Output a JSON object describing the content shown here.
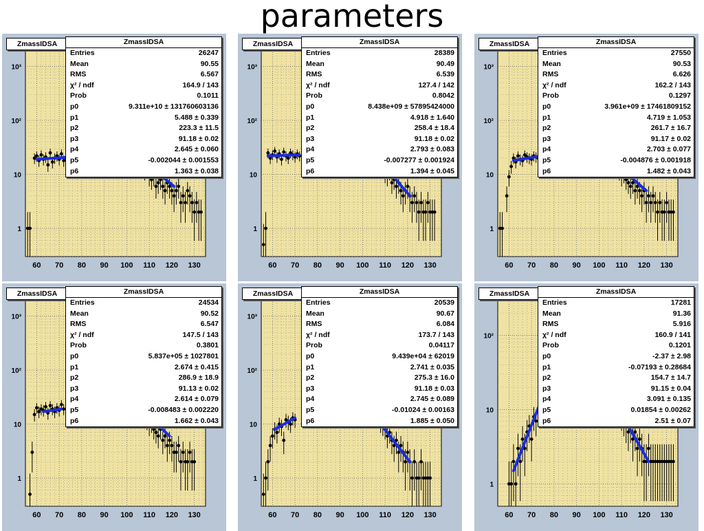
{
  "slide_title": "parameters",
  "chart_data": [
    {
      "type": "scatter",
      "histogram_name": "ZmassIDSA",
      "stats": [
        [
          "Entries",
          "26247"
        ],
        [
          "Mean",
          "90.55"
        ],
        [
          "RMS",
          "6.567"
        ],
        [
          "χ² / ndf",
          "164.9 / 143"
        ],
        [
          "Prob",
          "0.1011"
        ],
        [
          "p0",
          "9.311e+10 ± 131760603136"
        ],
        [
          "p1",
          "5.488 ± 0.339"
        ],
        [
          "p2",
          "223.3 ± 11.5"
        ],
        [
          "p3",
          "91.18 ± 0.02"
        ],
        [
          "p4",
          "2.645 ± 0.060"
        ],
        [
          "p5",
          "-0.002044 ± 0.001553"
        ],
        [
          "p6",
          "1.363 ± 0.038"
        ]
      ],
      "x_ticks": [
        "60",
        "70",
        "80",
        "90",
        "100",
        "110",
        "120",
        "130"
      ],
      "y_ticks": [
        "1",
        "10",
        "10²",
        "10³"
      ],
      "xlim": [
        55,
        135
      ],
      "ylim": [
        0.3,
        2000
      ],
      "yscale": "log",
      "fit_left": {
        "x": [
          60,
          75
        ],
        "y": [
          19,
          21
        ]
      },
      "fit_right": {
        "x": [
          107,
          121
        ],
        "y": [
          18,
          6
        ]
      },
      "points": {
        "x": [
          56,
          57,
          59,
          60,
          61,
          62,
          63,
          64,
          65,
          66,
          67,
          68,
          69,
          70,
          71,
          72,
          73,
          74,
          75,
          106,
          107,
          108,
          109,
          110,
          111,
          112,
          113,
          114,
          115,
          116,
          117,
          118,
          119,
          120,
          121,
          122,
          123,
          124,
          125,
          126,
          127,
          128,
          129,
          130,
          131,
          132,
          133
        ],
        "y": [
          1,
          1,
          20,
          22,
          18,
          23,
          19,
          21,
          15,
          25,
          17,
          20,
          22,
          19,
          24,
          18,
          20,
          23,
          21,
          20,
          15,
          11,
          12,
          9,
          8,
          9,
          6,
          7,
          8,
          6,
          5,
          7,
          6,
          5,
          4,
          5,
          6,
          3,
          4,
          3,
          5,
          4,
          3,
          2,
          3,
          2,
          2
        ]
      }
    },
    {
      "type": "scatter",
      "histogram_name": "ZmassIDSA",
      "stats": [
        [
          "Entries",
          "28389"
        ],
        [
          "Mean",
          "90.49"
        ],
        [
          "RMS",
          "6.539"
        ],
        [
          "χ² / ndf",
          "127.4 / 142"
        ],
        [
          "Prob",
          "0.8042"
        ],
        [
          "p0",
          "8.438e+09 ± 57895424000"
        ],
        [
          "p1",
          "4.918 ± 1.640"
        ],
        [
          "p2",
          "258.4 ± 18.4"
        ],
        [
          "p3",
          "91.18 ± 0.02"
        ],
        [
          "p4",
          "2.793 ± 0.083"
        ],
        [
          "p5",
          "-0.007277 ± 0.001924"
        ],
        [
          "p6",
          "1.394 ± 0.045"
        ]
      ],
      "x_ticks": [
        "60",
        "70",
        "80",
        "90",
        "100",
        "110",
        "120",
        "130"
      ],
      "y_ticks": [
        "1",
        "10",
        "10²",
        "10³"
      ],
      "xlim": [
        55,
        135
      ],
      "ylim": [
        0.3,
        2000
      ],
      "yscale": "log",
      "fit_left": {
        "x": [
          58,
          72
        ],
        "y": [
          22,
          23
        ]
      },
      "fit_right": {
        "x": [
          108,
          121
        ],
        "y": [
          17,
          4
        ]
      },
      "points": {
        "x": [
          56,
          57,
          58,
          59,
          60,
          61,
          62,
          63,
          64,
          65,
          66,
          67,
          68,
          69,
          70,
          71,
          72,
          107,
          108,
          109,
          110,
          111,
          112,
          113,
          114,
          115,
          116,
          117,
          118,
          119,
          120,
          121,
          122,
          123,
          124,
          125,
          126,
          127,
          128,
          129,
          130,
          131,
          132
        ],
        "y": [
          0.5,
          1,
          25,
          20,
          23,
          27,
          21,
          24,
          19,
          26,
          22,
          20,
          25,
          23,
          21,
          24,
          22,
          16,
          14,
          13,
          10,
          9,
          11,
          7,
          8,
          6,
          7,
          5,
          4,
          5,
          6,
          4,
          3,
          4,
          3,
          2,
          3,
          2,
          2,
          3,
          2,
          2,
          2
        ]
      }
    },
    {
      "type": "scatter",
      "histogram_name": "ZmassIDSA",
      "stats": [
        [
          "Entries",
          "27550"
        ],
        [
          "Mean",
          "90.53"
        ],
        [
          "RMS",
          "6.626"
        ],
        [
          "χ² / ndf",
          "162.2 / 143"
        ],
        [
          "Prob",
          "0.1297"
        ],
        [
          "p0",
          "3.961e+09 ± 17461809152"
        ],
        [
          "p1",
          "4.719 ± 1.053"
        ],
        [
          "p2",
          "261.7 ± 16.7"
        ],
        [
          "p3",
          "91.17 ± 0.02"
        ],
        [
          "p4",
          "2.703 ± 0.077"
        ],
        [
          "p5",
          "-0.004876 ± 0.001918"
        ],
        [
          "p6",
          "1.482 ± 0.043"
        ]
      ],
      "x_ticks": [
        "60",
        "70",
        "80",
        "90",
        "100",
        "110",
        "120",
        "130"
      ],
      "y_ticks": [
        "1",
        "10",
        "10²",
        "10³"
      ],
      "xlim": [
        55,
        135
      ],
      "ylim": [
        0.3,
        2000
      ],
      "yscale": "log",
      "fit_left": {
        "x": [
          62,
          74
        ],
        "y": [
          18,
          22
        ]
      },
      "fit_right": {
        "x": [
          107,
          121
        ],
        "y": [
          16,
          5
        ]
      },
      "points": {
        "x": [
          56,
          57,
          59,
          60,
          61,
          62,
          63,
          64,
          65,
          66,
          67,
          68,
          69,
          70,
          71,
          72,
          73,
          106,
          107,
          108,
          109,
          110,
          111,
          112,
          113,
          114,
          115,
          116,
          117,
          118,
          119,
          120,
          121,
          122,
          123,
          124,
          125,
          126,
          127,
          128,
          129,
          130,
          131,
          132,
          133
        ],
        "y": [
          1,
          1,
          4,
          9,
          14,
          20,
          17,
          22,
          19,
          18,
          23,
          21,
          20,
          19,
          22,
          21,
          20,
          18,
          14,
          13,
          11,
          9,
          10,
          8,
          7,
          6,
          7,
          5,
          6,
          5,
          4,
          5,
          3,
          4,
          3,
          4,
          3,
          2,
          3,
          2,
          2,
          3,
          2,
          2,
          2
        ]
      }
    },
    {
      "type": "scatter",
      "histogram_name": "ZmassIDSA",
      "stats": [
        [
          "Entries",
          "24534"
        ],
        [
          "Mean",
          "90.52"
        ],
        [
          "RMS",
          "6.547"
        ],
        [
          "χ² / ndf",
          "147.5 / 143"
        ],
        [
          "Prob",
          "0.3801"
        ],
        [
          "p0",
          "5.837e+05 ± 1027801"
        ],
        [
          "p1",
          "2.674 ± 0.415"
        ],
        [
          "p2",
          "286.9 ± 18.9"
        ],
        [
          "p3",
          "91.13 ± 0.02"
        ],
        [
          "p4",
          "2.614 ± 0.079"
        ],
        [
          "p5",
          "-0.008483 ± 0.002220"
        ],
        [
          "p6",
          "1.662 ± 0.043"
        ]
      ],
      "x_ticks": [
        "60",
        "70",
        "80",
        "90",
        "100",
        "110",
        "120",
        "130"
      ],
      "y_ticks": [
        "1",
        "10",
        "10²",
        "10³"
      ],
      "xlim": [
        55,
        135
      ],
      "ylim": [
        0.3,
        2000
      ],
      "yscale": "log",
      "fit_left": {
        "x": [
          63,
          71
        ],
        "y": [
          17,
          19
        ]
      },
      "fit_right": {
        "x": [
          106,
          119
        ],
        "y": [
          20,
          6
        ]
      },
      "points": {
        "x": [
          57,
          58,
          59,
          60,
          61,
          62,
          63,
          64,
          65,
          66,
          67,
          68,
          69,
          70,
          71,
          72,
          105,
          106,
          107,
          108,
          109,
          110,
          111,
          112,
          113,
          114,
          115,
          116,
          117,
          118,
          119,
          120,
          121,
          122,
          123,
          124,
          125,
          126,
          127,
          128,
          129,
          130
        ],
        "y": [
          0.5,
          3,
          15,
          20,
          17,
          19,
          18,
          21,
          16,
          22,
          19,
          17,
          20,
          18,
          23,
          19,
          20,
          17,
          15,
          12,
          11,
          9,
          10,
          8,
          7,
          6,
          8,
          5,
          6,
          4,
          5,
          4,
          3,
          3,
          4,
          2,
          3,
          2,
          2,
          3,
          2,
          2
        ]
      }
    },
    {
      "type": "scatter",
      "histogram_name": "ZmassIDSA",
      "stats": [
        [
          "Entries",
          "20539"
        ],
        [
          "Mean",
          "90.67"
        ],
        [
          "RMS",
          "6.084"
        ],
        [
          "χ² / ndf",
          "173.7 / 143"
        ],
        [
          "Prob",
          "0.04117"
        ],
        [
          "p0",
          "9.439e+04 ± 62019"
        ],
        [
          "p1",
          "2.741 ± 0.035"
        ],
        [
          "p2",
          "275.3 ± 16.0"
        ],
        [
          "p3",
          "91.18 ± 0.03"
        ],
        [
          "p4",
          "2.745 ± 0.089"
        ],
        [
          "p5",
          "-0.01024 ± 0.00163"
        ],
        [
          "p6",
          "1.885 ± 0.050"
        ]
      ],
      "x_ticks": [
        "60",
        "70",
        "80",
        "90",
        "100",
        "110",
        "120",
        "130"
      ],
      "y_ticks": [
        "1",
        "10",
        "10²",
        "10³"
      ],
      "xlim": [
        55,
        135
      ],
      "ylim": [
        0.3,
        2000
      ],
      "yscale": "log",
      "fit_left": {
        "x": [
          61,
          70
        ],
        "y": [
          8,
          13
        ]
      },
      "fit_right": {
        "x": [
          108,
          121
        ],
        "y": [
          10,
          2
        ]
      },
      "points": {
        "x": [
          56,
          57,
          58,
          59,
          60,
          61,
          62,
          63,
          64,
          65,
          66,
          67,
          68,
          69,
          70,
          107,
          108,
          109,
          110,
          111,
          112,
          113,
          114,
          115,
          116,
          117,
          118,
          119,
          120,
          121,
          122,
          123,
          124,
          125,
          126,
          127,
          128,
          129,
          130
        ],
        "y": [
          0.5,
          1,
          2,
          4,
          6,
          8,
          7,
          10,
          9,
          5,
          12,
          11,
          10,
          13,
          12,
          12,
          10,
          9,
          8,
          6,
          7,
          5,
          4,
          5,
          3,
          4,
          3,
          2,
          3,
          2,
          1,
          2,
          1,
          1,
          2,
          1,
          1,
          1,
          1
        ]
      }
    },
    {
      "type": "scatter",
      "histogram_name": "ZmassIDSA",
      "stats": [
        [
          "Entries",
          "17281"
        ],
        [
          "Mean",
          "91.36"
        ],
        [
          "RMS",
          "5.916"
        ],
        [
          "χ² / ndf",
          "160.9 / 141"
        ],
        [
          "Prob",
          "0.1201"
        ],
        [
          "p0",
          "-2.37 ± 2.98"
        ],
        [
          "p1",
          "-0.07193 ± 0.28684"
        ],
        [
          "p2",
          "154.7 ± 14.7"
        ],
        [
          "p3",
          "91.15 ± 0.04"
        ],
        [
          "p4",
          "3.091 ± 0.135"
        ],
        [
          "p5",
          "0.01854 ± 0.00262"
        ],
        [
          "p6",
          "2.51 ± 0.07"
        ]
      ],
      "x_ticks": [
        "60",
        "70",
        "80",
        "90",
        "100",
        "110",
        "120",
        "130"
      ],
      "y_ticks": [
        "1",
        "10",
        "10²"
      ],
      "xlim": [
        55,
        135
      ],
      "ylim": [
        0.5,
        300
      ],
      "yscale": "log",
      "fit_left": {
        "x": [
          62,
          75
        ],
        "y": [
          1.5,
          15
        ]
      },
      "fit_right": {
        "x": [
          108,
          122
        ],
        "y": [
          11,
          2
        ]
      },
      "points": {
        "x": [
          60,
          61,
          62,
          63,
          64,
          65,
          66,
          67,
          68,
          69,
          70,
          71,
          72,
          73,
          74,
          108,
          109,
          110,
          111,
          112,
          113,
          114,
          115,
          116,
          117,
          118,
          119,
          120,
          121,
          122,
          123,
          124,
          125,
          126,
          127,
          128,
          129,
          130,
          131,
          132,
          133
        ],
        "y": [
          1,
          1,
          2,
          1,
          3,
          2,
          4,
          3,
          5,
          6,
          4,
          8,
          7,
          10,
          12,
          11,
          9,
          8,
          7,
          6,
          5,
          6,
          4,
          5,
          3,
          4,
          3,
          2,
          2,
          3,
          2,
          2,
          2,
          2,
          2,
          2,
          2,
          2,
          2,
          2,
          2
        ]
      }
    }
  ]
}
